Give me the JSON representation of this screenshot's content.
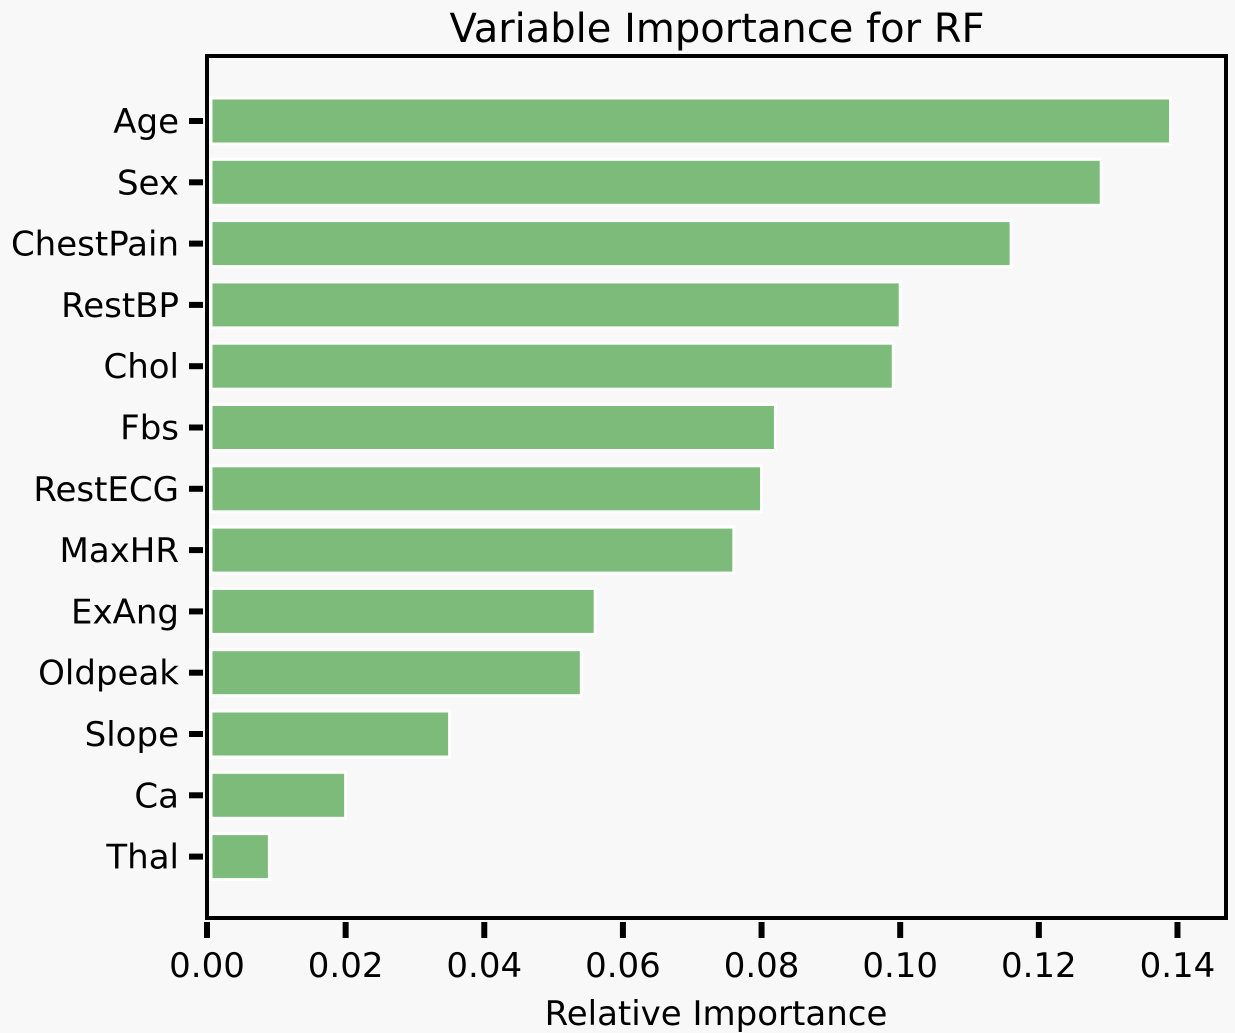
{
  "chart_data": {
    "type": "bar",
    "orientation": "horizontal",
    "title": "Variable Importance for RF",
    "xlabel": "Relative Importance",
    "ylabel": "",
    "categories": [
      "Age",
      "Sex",
      "ChestPain",
      "RestBP",
      "Chol",
      "Fbs",
      "RestECG",
      "MaxHR",
      "ExAng",
      "Oldpeak",
      "Slope",
      "Ca",
      "Thal"
    ],
    "values": [
      0.139,
      0.129,
      0.116,
      0.1,
      0.099,
      0.082,
      0.08,
      0.076,
      0.056,
      0.054,
      0.035,
      0.02,
      0.009
    ],
    "xlim": [
      0.0,
      0.147
    ],
    "xticks": [
      "0.00",
      "0.02",
      "0.04",
      "0.06",
      "0.08",
      "0.10",
      "0.12",
      "0.14"
    ],
    "grid": false,
    "bar_color": "#7dbb7b",
    "background_color": "#f8f8f8"
  }
}
